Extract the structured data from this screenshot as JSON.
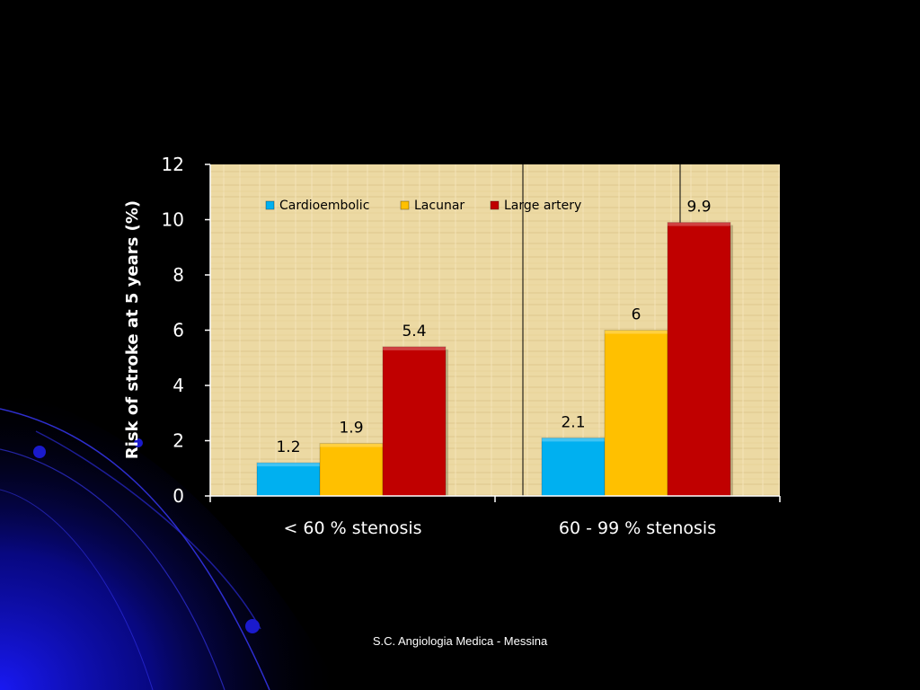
{
  "slide": {
    "footer": "S.C. Angiologia Medica - Messina"
  },
  "colors": {
    "background": "#000000",
    "plot_bg": "#ecd9a3",
    "axis_text": "#ffffff",
    "cardioembolic": "#00b0f0",
    "lacunar": "#ffc000",
    "large_artery": "#c00000"
  },
  "chart_data": {
    "type": "bar",
    "title": "",
    "xlabel": "",
    "ylabel": "Risk of stroke at 5 years (%)",
    "categories": [
      "< 60 % stenosis",
      "60 - 99 % stenosis"
    ],
    "series": [
      {
        "name": "Cardioembolic",
        "values": [
          1.2,
          2.1
        ]
      },
      {
        "name": "Lacunar",
        "values": [
          1.9,
          6
        ]
      },
      {
        "name": "Large artery",
        "values": [
          5.4,
          9.9
        ]
      }
    ],
    "ylim": [
      0,
      12
    ],
    "yticks": [
      0,
      2,
      4,
      6,
      8,
      10,
      12
    ],
    "data_labels": [
      [
        "1.2",
        "2.1"
      ],
      [
        "1.9",
        "6"
      ],
      [
        "5.4",
        "9.9"
      ]
    ],
    "legend_position": "top",
    "grid": false
  }
}
